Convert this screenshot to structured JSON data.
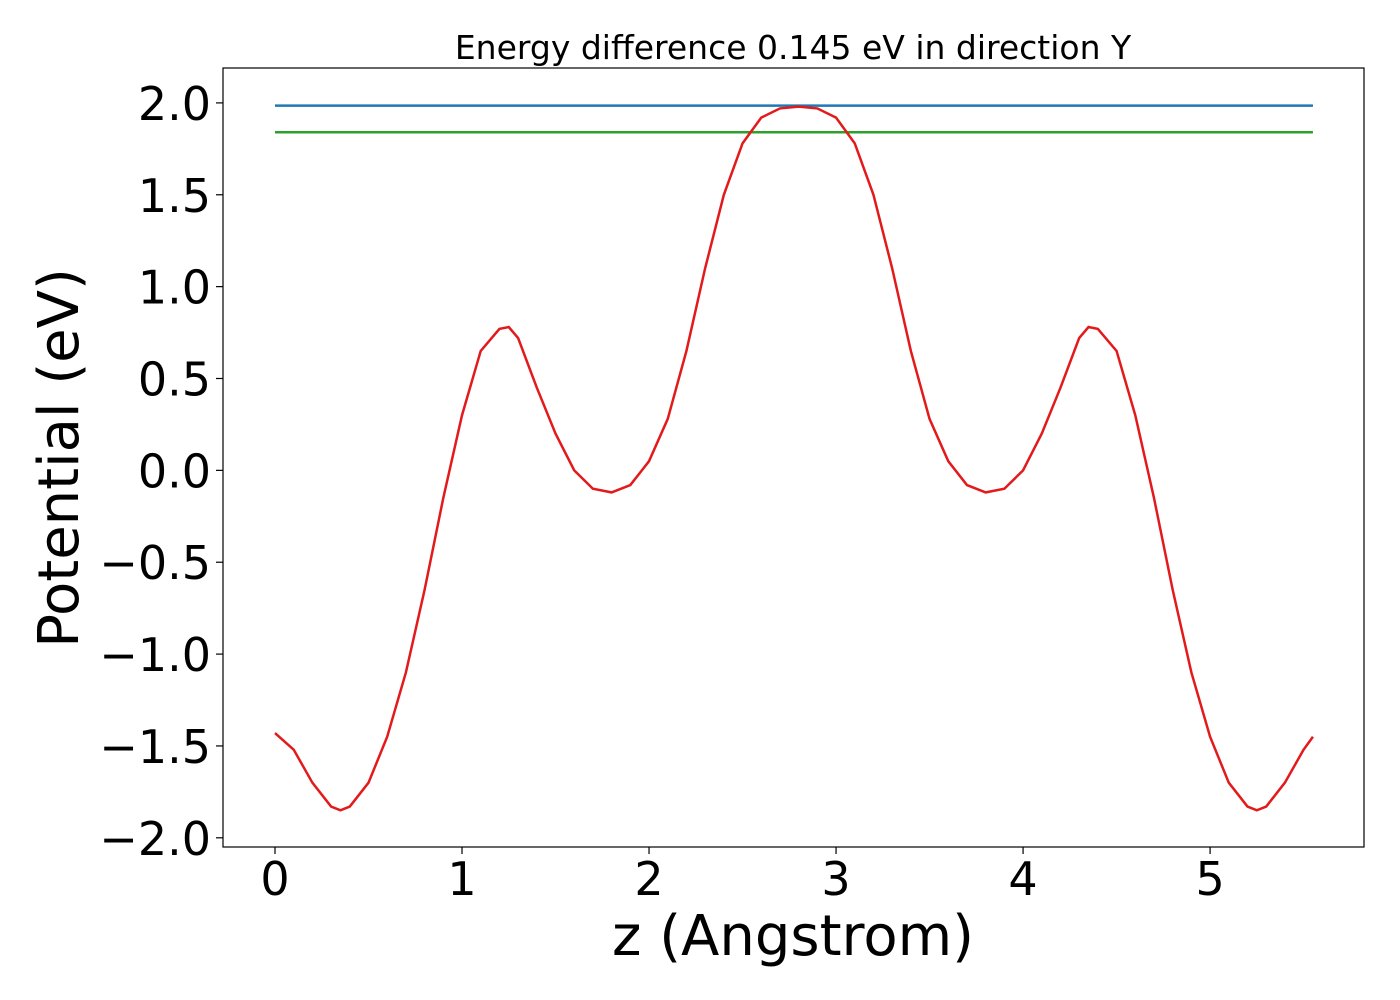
{
  "chart_data": {
    "type": "line",
    "title": "Energy difference 0.145 eV in direction Y",
    "x_label": "z (Angstrom)",
    "y_label": "Potential (eV)",
    "xlim": [
      -0.278,
      5.823
    ],
    "ylim": [
      -2.05,
      2.19
    ],
    "xticks": [
      0,
      1,
      2,
      3,
      4,
      5
    ],
    "yticks": [
      {
        "value": -2,
        "label": "−2.0"
      },
      {
        "value": -1.5,
        "label": "−1.5"
      },
      {
        "value": -1,
        "label": "−1.0"
      },
      {
        "value": -0.5,
        "label": "−0.5"
      },
      {
        "value": 0,
        "label": "0.0"
      },
      0.5,
      {
        "value": 1,
        "label": "1.0"
      },
      1.5,
      {
        "value": 2,
        "label": "2.0"
      }
    ],
    "grid": false,
    "series": [
      {
        "color": "#1f77b4",
        "x": [
          0,
          5.55
        ],
        "values": [
          1.985,
          1.985
        ]
      },
      {
        "color": "#2ca02c",
        "x": [
          0,
          5.55
        ],
        "values": [
          1.84,
          1.84
        ]
      },
      {
        "color": "#e31a1c",
        "x": [
          0,
          0.1,
          0.2,
          0.3,
          0.35,
          0.4,
          0.5,
          0.6,
          0.7,
          0.8,
          0.9,
          1.0,
          1.1,
          1.2,
          1.25,
          1.3,
          1.4,
          1.5,
          1.6,
          1.7,
          1.8,
          1.9,
          2.0,
          2.1,
          2.2,
          2.3,
          2.4,
          2.5,
          2.6,
          2.7,
          2.8,
          2.9,
          3.0,
          3.1,
          3.2,
          3.3,
          3.4,
          3.5,
          3.6,
          3.7,
          3.8,
          3.9,
          4.0,
          4.1,
          4.2,
          4.3,
          4.35,
          4.4,
          4.5,
          4.6,
          4.7,
          4.8,
          4.9,
          5.0,
          5.1,
          5.2,
          5.25,
          5.3,
          5.4,
          5.5,
          5.55
        ],
        "values": [
          -1.43,
          -1.52,
          -1.7,
          -1.83,
          -1.85,
          -1.83,
          -1.7,
          -1.45,
          -1.1,
          -0.65,
          -0.15,
          0.3,
          0.65,
          0.77,
          0.78,
          0.72,
          0.45,
          0.2,
          0.0,
          -0.1,
          -0.12,
          -0.08,
          0.05,
          0.28,
          0.65,
          1.1,
          1.5,
          1.78,
          1.92,
          1.97,
          1.98,
          1.97,
          1.92,
          1.78,
          1.5,
          1.1,
          0.65,
          0.28,
          0.05,
          -0.08,
          -0.12,
          -0.1,
          0.0,
          0.2,
          0.45,
          0.72,
          0.78,
          0.77,
          0.65,
          0.3,
          -0.15,
          -0.65,
          -1.1,
          -1.45,
          -1.7,
          -1.83,
          -1.85,
          -1.83,
          -1.7,
          -1.52,
          -1.45
        ]
      }
    ]
  }
}
